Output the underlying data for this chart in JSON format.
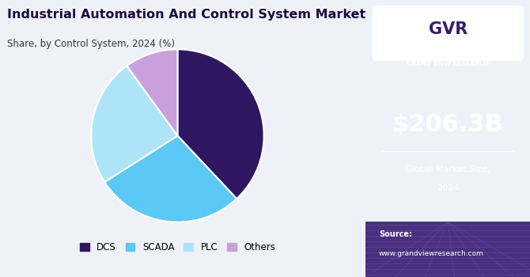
{
  "title": "Industrial Automation And Control System Market",
  "subtitle": "Share, by Control System, 2024 (%)",
  "segments": [
    "DCS",
    "SCADA",
    "PLC",
    "Others"
  ],
  "values": [
    38,
    28,
    24,
    10
  ],
  "colors": [
    "#2e1760",
    "#5bc8f5",
    "#aee4f8",
    "#c9a0dc"
  ],
  "startangle": 90,
  "left_bg": "#eef2f8",
  "right_bg": "#3b1a6b",
  "right_text_large": "$206.3B",
  "right_text_sub1": "Global Market Size,",
  "right_text_sub2": "2024",
  "source_label": "Source:",
  "source_url": "www.grandviewresearch.com",
  "legend_labels": [
    "DCS",
    "SCADA",
    "PLC",
    "Others"
  ],
  "title_color": "#1a0a3d",
  "subtitle_color": "#333333",
  "white": "#ffffff",
  "bottom_bg": "#4a3080"
}
